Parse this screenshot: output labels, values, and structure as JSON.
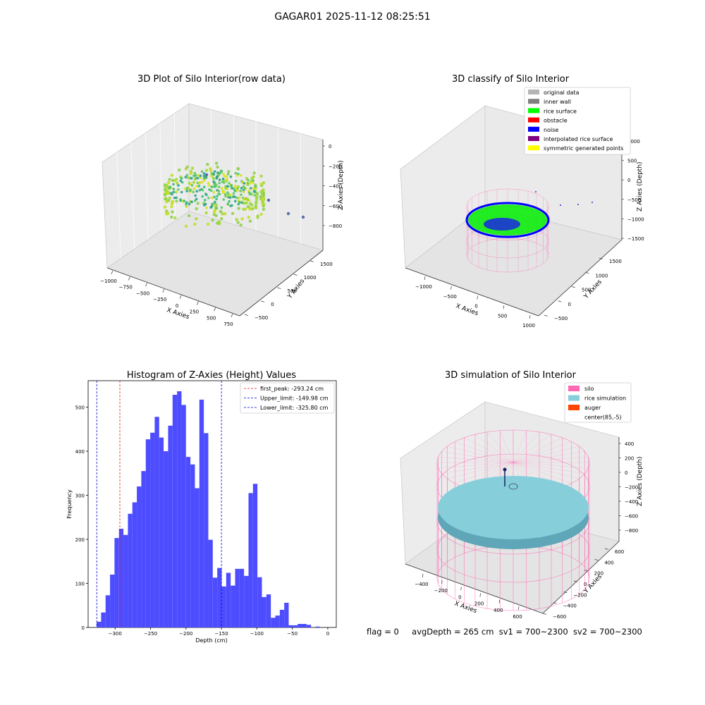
{
  "figure": {
    "title": "GAGAR01 2025-11-12 08:25:51",
    "footer": {
      "flag": "flag = 0",
      "avg_depth": "avgDepth = 265 cm",
      "sv1": "sv1 = 700~2300",
      "sv2": "sv2 = 700~2300"
    }
  },
  "colors": {
    "histogram_bar": "#4d4dff",
    "peak_line": "#e41a1c",
    "limit_line": "#0000dd",
    "silo": "#ff69b4",
    "rice_simulation": "#87cedb",
    "auger": "#ff4500",
    "original_data": "#b4b4b4",
    "inner_wall": "#808080",
    "rice_surface": "#00ff00",
    "obstacle": "#ff0000",
    "noise": "#0000ff",
    "interpolated_rice_surface": "#800080",
    "symmetric_generated_points": "#ffff00"
  },
  "chart_data": [
    {
      "type": "scatter",
      "title": "3D Plot of Silo Interior(row data)",
      "xlabel": "X Axies",
      "ylabel": "Y Axies",
      "zlabel": "Z Axies (Depth)",
      "x_ticks": [
        "−1000",
        "−750",
        "−500",
        "−250",
        "0",
        "250",
        "500",
        "750"
      ],
      "y_ticks": [
        "−500",
        "0",
        "500",
        "1000",
        "1500"
      ],
      "z_ticks": [
        "0",
        "−200",
        "−400",
        "−600",
        "−800"
      ],
      "xlim": [
        -1100,
        800
      ],
      "ylim": [
        -600,
        1700
      ],
      "zlim": [
        -900,
        0
      ]
    },
    {
      "type": "scatter",
      "title": "3D classify of Silo Interior",
      "xlabel": "X Axies",
      "ylabel": "Y Axies",
      "zlabel": "Z Axies (Depth)",
      "x_ticks": [
        "−1000",
        "−500",
        "0",
        "500",
        "1000"
      ],
      "y_ticks": [
        "−500",
        "0",
        "500",
        "1000",
        "1500"
      ],
      "z_ticks": [
        "1000",
        "500",
        "0",
        "−500",
        "−1000",
        "−1500"
      ],
      "legend": [
        {
          "label": "original data",
          "color": "#b4b4b4"
        },
        {
          "label": "inner wall",
          "color": "#808080"
        },
        {
          "label": "rice surface",
          "color": "#00ff00"
        },
        {
          "label": "obstacle",
          "color": "#ff0000"
        },
        {
          "label": "noise",
          "color": "#0000ff"
        },
        {
          "label": "interpolated rice surface",
          "color": "#800080"
        },
        {
          "label": "symmetric generated points",
          "color": "#ffff00"
        }
      ],
      "legend_position": "top-right"
    },
    {
      "type": "bar",
      "title": "Histogram of Z-Axies (Height) Values",
      "xlabel": "Depth (cm)",
      "ylabel": "Frequency",
      "xlim": [
        -338,
        12
      ],
      "ylim": [
        0,
        560
      ],
      "x_ticks": [
        -300,
        -250,
        -200,
        -150,
        -100,
        -50,
        0
      ],
      "y_ticks": [
        0,
        100,
        200,
        300,
        400,
        500
      ],
      "bin_start": -326,
      "bin_width": 6.3,
      "values": [
        13,
        34,
        73,
        120,
        203,
        224,
        210,
        258,
        284,
        320,
        355,
        427,
        442,
        478,
        431,
        400,
        458,
        528,
        536,
        505,
        387,
        370,
        316,
        517,
        441,
        199,
        113,
        135,
        93,
        124,
        95,
        133,
        133,
        117,
        305,
        326,
        114,
        69,
        75,
        22,
        27,
        40,
        56,
        5,
        5,
        8,
        8,
        6,
        0,
        2
      ],
      "vlines": [
        {
          "label": "first_peak: -293.24 cm",
          "x": -293.24,
          "color": "#e41a1c"
        },
        {
          "label": "Upper_limit: -149.98 cm",
          "x": -149.98,
          "color": "#0000dd"
        },
        {
          "label": "Lower_limit: -325.80 cm",
          "x": -325.8,
          "color": "#0000dd"
        }
      ],
      "legend_position": "top-right"
    },
    {
      "type": "scatter",
      "title": "3D simulation of Silo Interior",
      "xlabel": "X Axies",
      "ylabel": "Y Axies",
      "zlabel": "Z Axies (Depth)",
      "x_ticks": [
        "−400",
        "−200",
        "0",
        "200",
        "400",
        "600"
      ],
      "y_ticks": [
        "−600",
        "−400",
        "−200",
        "0",
        "200",
        "400",
        "600"
      ],
      "z_ticks": [
        "400",
        "200",
        "0",
        "−200",
        "−400",
        "−600",
        "−800"
      ],
      "legend": [
        {
          "label": "silo",
          "color": "#ff69b4"
        },
        {
          "label": "rice simulation",
          "color": "#87cedb"
        },
        {
          "label": "auger",
          "color": "#ff4500"
        },
        {
          "label": "center(85,-5)",
          "color": "#ffffff"
        }
      ],
      "legend_position": "top-right"
    }
  ]
}
